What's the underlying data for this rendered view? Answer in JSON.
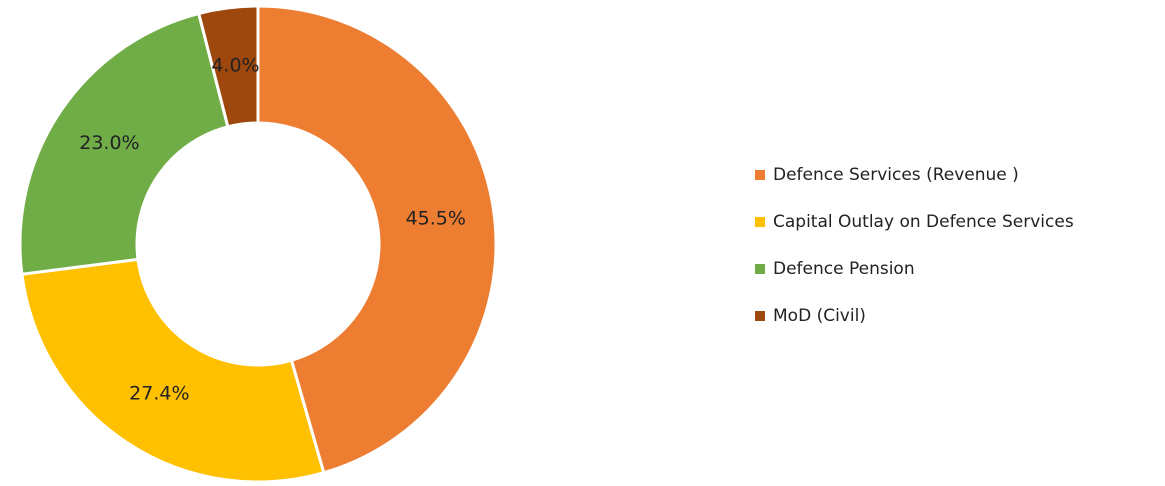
{
  "chart_data": {
    "type": "donut",
    "categories": [
      "Defence Services (Revenue )",
      "Capital Outlay on Defence Services",
      "Defence Pension",
      "MoD (Civil)"
    ],
    "values": [
      45.5,
      27.4,
      23.0,
      4.0
    ],
    "value_labels": [
      "45.5%",
      "27.4%",
      "23.0%",
      "4.0%"
    ],
    "colors": [
      "#ed7d31",
      "#ffc000",
      "#70ad47",
      "#9e480e"
    ],
    "legend": "right"
  }
}
